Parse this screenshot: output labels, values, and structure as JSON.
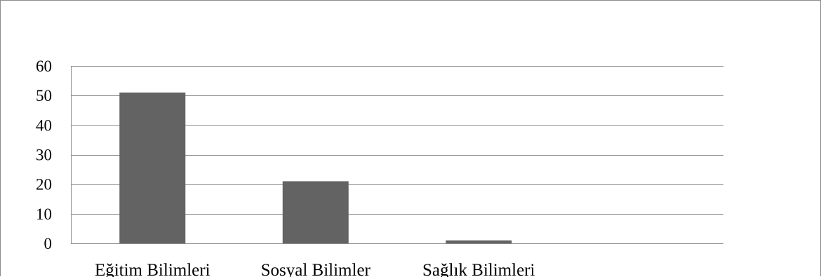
{
  "chart_data": {
    "type": "bar",
    "categories": [
      "Eğitim Bilimleri",
      "Sosyal Bilimler",
      "Sağlık Bilimleri",
      ""
    ],
    "values": [
      51,
      21,
      1,
      0
    ],
    "ylim": [
      0,
      60
    ],
    "yticks": [
      "0",
      "10",
      "20",
      "30",
      "40",
      "50",
      "60"
    ],
    "grid": true,
    "legend": "none",
    "bar_color": "#636363",
    "grid_color": "#8c8c8c"
  }
}
